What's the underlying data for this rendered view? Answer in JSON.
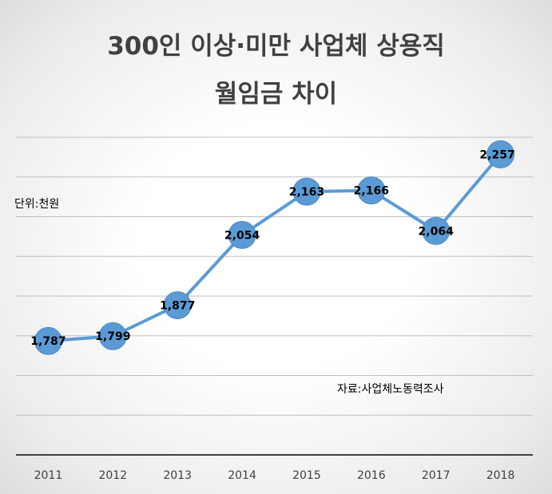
{
  "chart_data": {
    "type": "line",
    "title_lines": [
      "300인 이상·미만 사업체 상용직",
      "월임금 차이"
    ],
    "unit_note": "단위:천원",
    "source_note": "자료:사업체노동력조사",
    "categories": [
      "2011",
      "2012",
      "2013",
      "2014",
      "2015",
      "2016",
      "2017",
      "2018"
    ],
    "series": [
      {
        "values": [
          1787,
          1799,
          1877,
          2054,
          2163,
          2166,
          2064,
          2257
        ],
        "labels": [
          "1,787",
          "1,799",
          "1,877",
          "2,054",
          "2,163",
          "2,166",
          "2,064",
          "2,257"
        ]
      }
    ],
    "ylim": [
      1500,
      2300
    ],
    "grid": true,
    "line_color": "#5b9bd5",
    "marker_color": "#5b9bd5"
  }
}
